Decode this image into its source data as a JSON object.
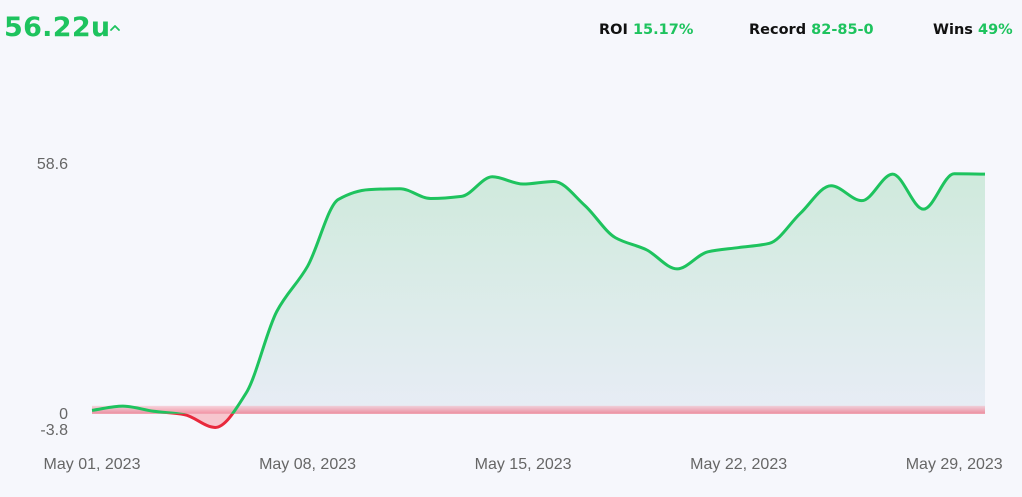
{
  "header": {
    "total_units": "56.22u",
    "trend_icon": "caret-up-icon",
    "stats": [
      {
        "label": "ROI",
        "value": "15.17%"
      },
      {
        "label": "Record",
        "value": "82-85-0"
      },
      {
        "label": "Wins",
        "value": "49%"
      }
    ]
  },
  "colors": {
    "positive": "#1ec35e",
    "negative": "#e8293c",
    "positive_fill": "#d3ecdf",
    "negative_fill": "#f7c6ce",
    "axis_text": "#666666"
  },
  "chart_data": {
    "type": "area",
    "x": [
      "2023-05-01",
      "2023-05-02",
      "2023-05-03",
      "2023-05-04",
      "2023-05-05",
      "2023-05-06",
      "2023-05-07",
      "2023-05-08",
      "2023-05-09",
      "2023-05-10",
      "2023-05-11",
      "2023-05-12",
      "2023-05-13",
      "2023-05-14",
      "2023-05-15",
      "2023-05-16",
      "2023-05-17",
      "2023-05-18",
      "2023-05-19",
      "2023-05-20",
      "2023-05-21",
      "2023-05-22",
      "2023-05-23",
      "2023-05-24",
      "2023-05-25",
      "2023-05-26",
      "2023-05-27",
      "2023-05-28",
      "2023-05-29",
      "2023-05-30"
    ],
    "values": [
      0.8,
      1.8,
      0.6,
      -0.2,
      -3.2,
      4.8,
      24.0,
      34.6,
      50.3,
      52.6,
      52.8,
      50.5,
      51.0,
      55.6,
      53.9,
      54.5,
      48.9,
      41.3,
      38.5,
      34.0,
      38.0,
      39.0,
      40.0,
      47.0,
      53.5,
      50.0,
      56.22,
      48.0,
      56.3,
      56.22
    ],
    "xlim": [
      "2023-05-01",
      "2023-05-30"
    ],
    "ylim": [
      -3.8,
      58.6
    ],
    "yticks": [
      {
        "value": 58.6,
        "label": "58.6"
      },
      {
        "value": 0,
        "label": "0"
      },
      {
        "value": -3.8,
        "label": "-3.8"
      }
    ],
    "xticks": [
      {
        "date": "2023-05-01",
        "label": "May 01, 2023"
      },
      {
        "date": "2023-05-08",
        "label": "May 08, 2023"
      },
      {
        "date": "2023-05-15",
        "label": "May 15, 2023"
      },
      {
        "date": "2023-05-22",
        "label": "May 22, 2023"
      },
      {
        "date": "2023-05-29",
        "label": "May 29, 2023"
      }
    ],
    "grid": false,
    "legend": "none"
  }
}
